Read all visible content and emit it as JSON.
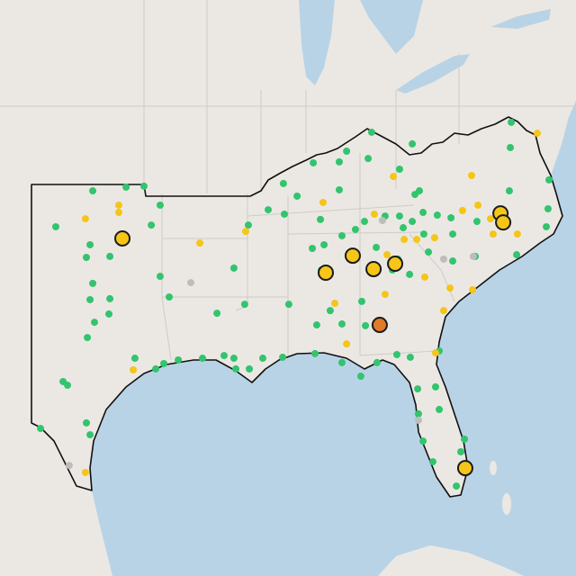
{
  "markers": [
    {
      "color": "#33c46e",
      "large": false,
      "points": [
        [
          -99.82,
          36.74
        ],
        [
          -98.09,
          36.89
        ],
        [
          -97.16,
          36.93
        ],
        [
          -96.32,
          36.15
        ],
        [
          -96.78,
          35.33
        ],
        [
          -101.74,
          35.26
        ],
        [
          -99.96,
          34.52
        ],
        [
          -98.93,
          34.04
        ],
        [
          -100.15,
          34.0
        ],
        [
          -96.32,
          33.22
        ],
        [
          -95.85,
          32.37
        ],
        [
          -99.82,
          32.93
        ],
        [
          -98.93,
          32.3
        ],
        [
          -99.96,
          32.26
        ],
        [
          -98.98,
          31.67
        ],
        [
          -99.73,
          31.33
        ],
        [
          -100.1,
          30.7
        ],
        [
          -101.36,
          28.89
        ],
        [
          -101.13,
          28.74
        ],
        [
          -100.15,
          27.19
        ],
        [
          -99.96,
          26.7
        ],
        [
          -102.53,
          26.96
        ],
        [
          -97.63,
          29.85
        ],
        [
          -96.55,
          29.41
        ],
        [
          -96.13,
          29.63
        ],
        [
          -95.38,
          29.78
        ],
        [
          -94.12,
          29.85
        ],
        [
          -93.0,
          29.96
        ],
        [
          -92.49,
          29.85
        ],
        [
          -92.39,
          29.41
        ],
        [
          -91.69,
          29.41
        ],
        [
          -90.99,
          29.85
        ],
        [
          -89.96,
          29.89
        ],
        [
          -88.28,
          30.04
        ],
        [
          -86.88,
          29.67
        ],
        [
          -85.9,
          29.11
        ],
        [
          -85.06,
          29.67
        ],
        [
          -84.03,
          30.0
        ],
        [
          -83.33,
          29.89
        ],
        [
          -82.95,
          28.59
        ],
        [
          -82.02,
          28.67
        ],
        [
          -82.91,
          27.56
        ],
        [
          -82.67,
          26.44
        ],
        [
          -82.16,
          25.59
        ],
        [
          -80.94,
          24.59
        ],
        [
          -80.71,
          26.0
        ],
        [
          -80.52,
          26.52
        ],
        [
          -81.83,
          27.74
        ],
        [
          -81.83,
          30.15
        ],
        [
          -85.85,
          32.19
        ],
        [
          -85.66,
          31.19
        ],
        [
          -86.88,
          31.26
        ],
        [
          -88.19,
          31.22
        ],
        [
          -89.64,
          32.07
        ],
        [
          -91.93,
          32.07
        ],
        [
          -93.37,
          31.7
        ],
        [
          -92.49,
          33.56
        ],
        [
          -91.74,
          35.33
        ],
        [
          -90.71,
          35.96
        ],
        [
          -89.21,
          36.52
        ],
        [
          -88.0,
          35.56
        ],
        [
          -88.42,
          34.37
        ],
        [
          -87.81,
          34.52
        ],
        [
          -86.88,
          34.89
        ],
        [
          -86.18,
          35.15
        ],
        [
          -85.71,
          35.48
        ],
        [
          -84.64,
          35.7
        ],
        [
          -83.89,
          35.7
        ],
        [
          -83.09,
          36.59
        ],
        [
          -83.23,
          35.48
        ],
        [
          -82.67,
          35.85
        ],
        [
          -81.93,
          35.74
        ],
        [
          -81.22,
          35.63
        ],
        [
          -79.87,
          35.48
        ],
        [
          -81.13,
          34.96
        ],
        [
          -82.63,
          34.96
        ],
        [
          -83.7,
          35.22
        ],
        [
          -82.39,
          34.22
        ],
        [
          -81.13,
          33.85
        ],
        [
          -79.96,
          34.04
        ],
        [
          -77.81,
          34.11
        ],
        [
          -76.27,
          35.26
        ],
        [
          -76.18,
          36.0
        ],
        [
          -76.13,
          37.19
        ],
        [
          -78.19,
          36.74
        ],
        [
          -78.14,
          38.52
        ],
        [
          -85.34,
          39.15
        ],
        [
          -83.23,
          38.67
        ],
        [
          -86.64,
          38.37
        ],
        [
          -87.02,
          37.93
        ],
        [
          -85.52,
          38.07
        ],
        [
          -83.89,
          37.63
        ],
        [
          -87.02,
          36.78
        ],
        [
          -89.92,
          37.04
        ],
        [
          -89.87,
          35.78
        ],
        [
          -88.37,
          37.89
        ],
        [
          -87.49,
          31.81
        ],
        [
          -87.95,
          33.48
        ],
        [
          -83.98,
          33.93
        ],
        [
          -83.37,
          33.3
        ],
        [
          -84.26,
          33.48
        ],
        [
          -85.1,
          34.41
        ],
        [
          -82.86,
          36.74
        ],
        [
          -78.09,
          39.56
        ]
      ]
    },
    {
      "color": "#f5c518",
      "large": false,
      "points": [
        [
          -100.2,
          35.59
        ],
        [
          -98.47,
          36.15
        ],
        [
          -98.47,
          35.85
        ],
        [
          -94.26,
          34.59
        ],
        [
          -91.88,
          35.07
        ],
        [
          -87.86,
          36.26
        ],
        [
          -85.2,
          35.78
        ],
        [
          -84.54,
          34.11
        ],
        [
          -83.65,
          34.74
        ],
        [
          -83.0,
          34.74
        ],
        [
          -82.07,
          34.81
        ],
        [
          -80.62,
          35.93
        ],
        [
          -79.82,
          36.15
        ],
        [
          -79.17,
          35.59
        ],
        [
          -80.15,
          37.37
        ],
        [
          -79.03,
          34.96
        ],
        [
          -77.77,
          34.96
        ],
        [
          -76.74,
          39.11
        ],
        [
          -80.1,
          32.67
        ],
        [
          -81.27,
          32.74
        ],
        [
          -81.6,
          31.81
        ],
        [
          -82.02,
          30.07
        ],
        [
          -86.64,
          30.44
        ],
        [
          -87.25,
          32.11
        ],
        [
          -84.21,
          37.33
        ],
        [
          -84.64,
          32.48
        ],
        [
          -97.72,
          29.37
        ],
        [
          -100.2,
          25.15
        ],
        [
          -82.58,
          33.19
        ]
      ]
    },
    {
      "color": "#bdbdbd",
      "large": false,
      "points": [
        [
          -94.73,
          32.96
        ],
        [
          -81.6,
          33.93
        ],
        [
          -80.06,
          34.04
        ],
        [
          -84.78,
          35.52
        ],
        [
          -82.91,
          27.3
        ],
        [
          -101.04,
          25.44
        ]
      ]
    },
    {
      "color": "#f5c518",
      "large": true,
      "points": [
        [
          -98.28,
          34.78
        ],
        [
          -86.32,
          34.07
        ],
        [
          -87.72,
          33.37
        ],
        [
          -85.24,
          33.52
        ],
        [
          -84.12,
          33.74
        ],
        [
          -78.65,
          35.81
        ],
        [
          -78.51,
          35.44
        ],
        [
          -80.48,
          25.33
        ]
      ]
    },
    {
      "color": "#e07b29",
      "large": true,
      "points": [
        [
          -84.92,
          31.22
        ]
      ]
    }
  ]
}
